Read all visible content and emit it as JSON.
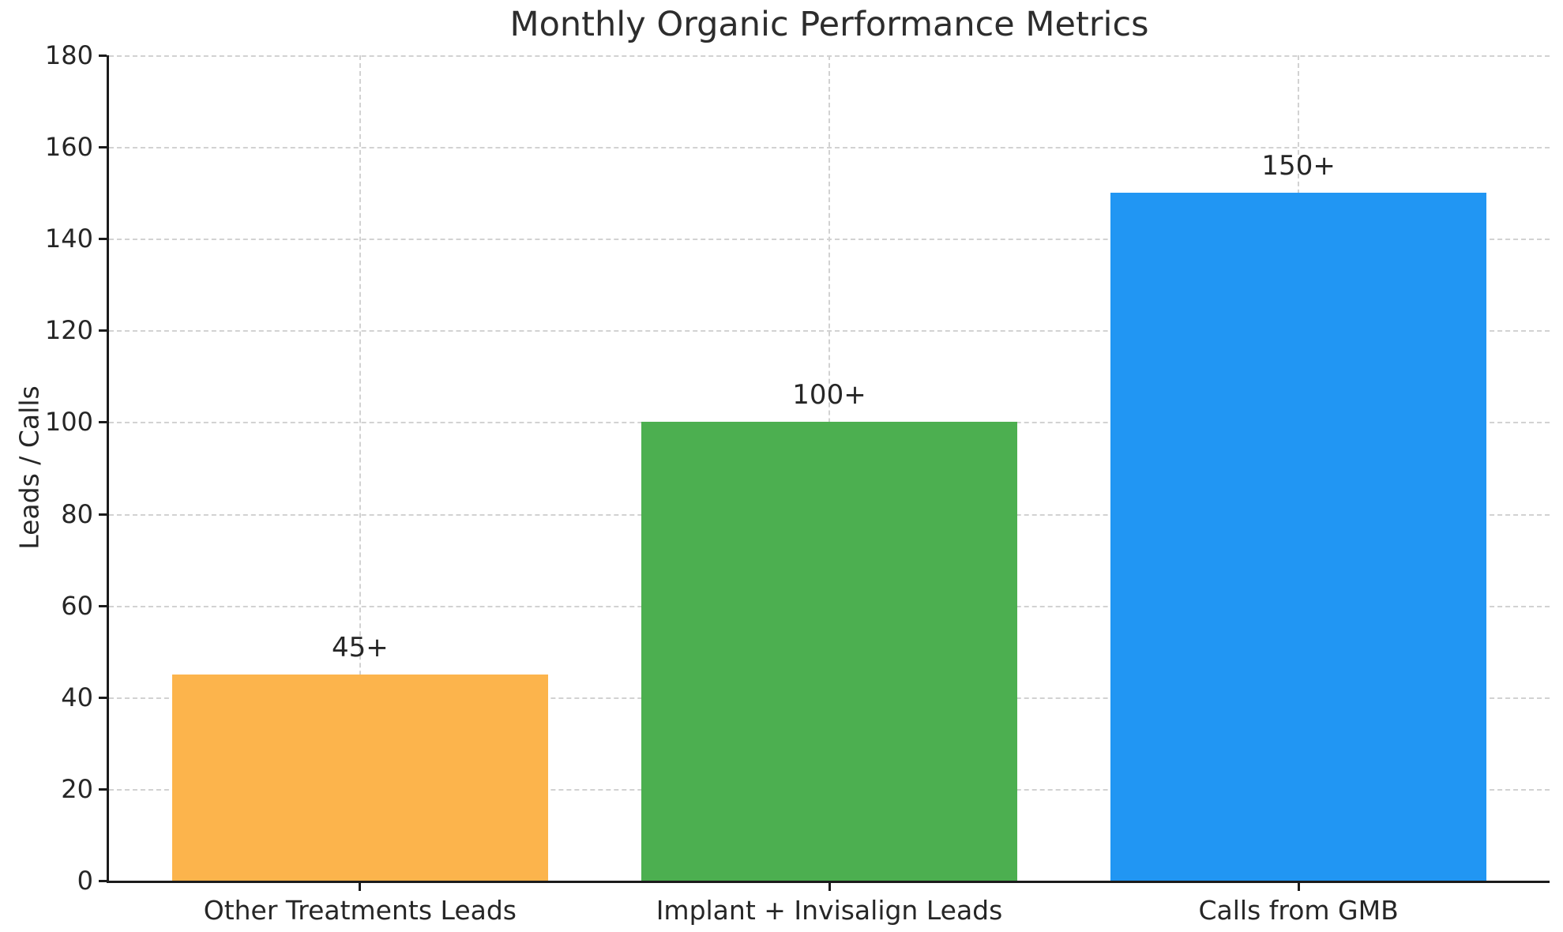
{
  "title": "Monthly Organic Performance Metrics",
  "chart_data": {
    "type": "bar",
    "title": "Monthly Organic Performance Metrics",
    "categories": [
      "Other Treatments Leads",
      "Implant + Invisalign Leads",
      "Calls from GMB"
    ],
    "values": [
      45,
      100,
      150
    ],
    "bar_labels": [
      "45+",
      "100+",
      "150+"
    ],
    "bar_colors": [
      "#FCB44C",
      "#4CAF50",
      "#2196F3"
    ],
    "xlabel": "",
    "ylabel": "Leads / Calls",
    "ylim": [
      0,
      180
    ],
    "yticks": [
      0,
      20,
      40,
      60,
      80,
      100,
      120,
      140,
      160,
      180
    ],
    "grid": "dashed, both axes",
    "grid_color": "#d2d2d2",
    "axis_color": "#1c1c1c",
    "text_color": "#262626",
    "background_color": "#ffffff",
    "legend": "none"
  }
}
